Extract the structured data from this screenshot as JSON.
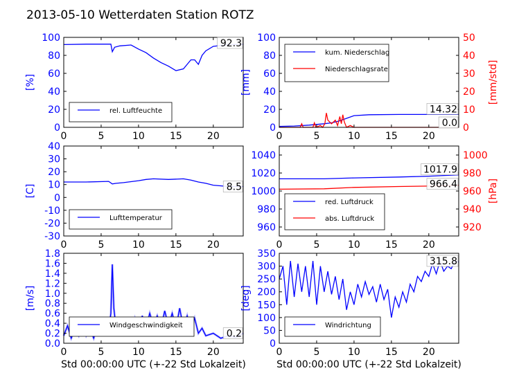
{
  "figure": {
    "title": "2013-05-10 Wetterdaten Station ROTZ"
  },
  "colors": {
    "primary": "#0000ff",
    "secondary": "#ff0000",
    "wind_light": "#8080ff",
    "text": "#000000"
  },
  "chart_data": [
    {
      "id": "humidity",
      "type": "line",
      "ylabel": "[%]",
      "ylim": [
        0,
        100
      ],
      "yticks": [
        0,
        20,
        40,
        60,
        80,
        100
      ],
      "xlim": [
        0,
        24
      ],
      "xticks": [
        0,
        5,
        10,
        15,
        20
      ],
      "legend": "lower-left",
      "last_value_label": "92.3",
      "series": [
        {
          "name": "rel. Luftfeuchte",
          "color": "#0000ff",
          "points": [
            [
              0,
              92
            ],
            [
              3,
              92.5
            ],
            [
              6.3,
              92.5
            ],
            [
              6.5,
              84
            ],
            [
              6.8,
              89
            ],
            [
              7.5,
              90.5
            ],
            [
              9,
              91.5
            ],
            [
              10,
              87
            ],
            [
              11,
              83
            ],
            [
              12,
              77
            ],
            [
              13,
              72
            ],
            [
              14,
              68
            ],
            [
              15,
              63
            ],
            [
              16,
              65
            ],
            [
              16.5,
              70
            ],
            [
              17,
              75
            ],
            [
              17.5,
              75
            ],
            [
              18,
              70
            ],
            [
              18.5,
              80
            ],
            [
              19,
              85
            ],
            [
              20,
              90
            ],
            [
              22,
              92
            ],
            [
              24,
              92.3
            ]
          ]
        }
      ]
    },
    {
      "id": "precip",
      "type": "line",
      "ylabel": "[mm]",
      "ylim": [
        0,
        100
      ],
      "yticks": [
        0,
        20,
        40,
        60,
        80,
        100
      ],
      "ylabel2": "[mm/std]",
      "ylim2": [
        0,
        50
      ],
      "yticks2": [
        0,
        10,
        20,
        30,
        40,
        50
      ],
      "xlim": [
        0,
        24
      ],
      "xticks": [
        0,
        5,
        10,
        15,
        20
      ],
      "legend": "top-left",
      "last_value_labels": [
        "14.32",
        "0.0"
      ],
      "series": [
        {
          "name": "kum. Niederschlag",
          "axis": "left",
          "color": "#0000ff",
          "points": [
            [
              0,
              1
            ],
            [
              2,
              1.5
            ],
            [
              4,
              2.5
            ],
            [
              6,
              4
            ],
            [
              7,
              5
            ],
            [
              8,
              7
            ],
            [
              9,
              10
            ],
            [
              10,
              13
            ],
            [
              12,
              14
            ],
            [
              16,
              14.3
            ],
            [
              24,
              14.32
            ]
          ]
        },
        {
          "name": "Niederschlagsrate",
          "axis": "right",
          "color": "#ff0000",
          "points": [
            [
              0,
              0
            ],
            [
              2.8,
              0
            ],
            [
              3,
              2
            ],
            [
              3.2,
              0
            ],
            [
              4.5,
              0
            ],
            [
              4.7,
              2.5
            ],
            [
              4.9,
              0
            ],
            [
              5.5,
              1
            ],
            [
              5.8,
              0
            ],
            [
              6.1,
              2
            ],
            [
              6.3,
              8
            ],
            [
              6.5,
              4
            ],
            [
              7,
              2
            ],
            [
              7.5,
              4
            ],
            [
              7.8,
              1
            ],
            [
              8.1,
              6
            ],
            [
              8.3,
              2
            ],
            [
              8.5,
              7
            ],
            [
              8.7,
              3
            ],
            [
              9,
              0
            ],
            [
              9.5,
              1
            ],
            [
              10,
              0
            ],
            [
              24,
              0
            ]
          ]
        }
      ]
    },
    {
      "id": "temperature",
      "type": "line",
      "ylabel": "[C]",
      "ylim": [
        -30,
        40
      ],
      "yticks": [
        -30,
        -20,
        -10,
        0,
        10,
        20,
        30,
        40
      ],
      "xlim": [
        0,
        24
      ],
      "xticks": [
        0,
        5,
        10,
        15,
        20
      ],
      "legend": "lower-left",
      "last_value_label": "8.5",
      "series": [
        {
          "name": "Lufttemperatur",
          "color": "#0000ff",
          "points": [
            [
              0,
              12
            ],
            [
              3,
              12
            ],
            [
              6,
              12.5
            ],
            [
              6.5,
              10.5
            ],
            [
              7,
              11
            ],
            [
              8,
              11.5
            ],
            [
              10,
              13
            ],
            [
              11,
              14
            ],
            [
              12,
              14.5
            ],
            [
              14,
              14
            ],
            [
              16,
              14.5
            ],
            [
              17,
              13.5
            ],
            [
              18,
              12
            ],
            [
              19,
              11
            ],
            [
              20,
              9.5
            ],
            [
              22,
              8.5
            ],
            [
              24,
              8.5
            ]
          ]
        }
      ]
    },
    {
      "id": "pressure",
      "type": "line",
      "ylabel": "",
      "ylim": [
        950,
        1050
      ],
      "yticks": [
        960,
        980,
        1000,
        1020,
        1040
      ],
      "ylabel2": "[hPa]",
      "ylim2": [
        910,
        1010
      ],
      "yticks2": [
        920,
        940,
        960,
        980,
        1000
      ],
      "xlim": [
        0,
        24
      ],
      "xticks": [
        0,
        5,
        10,
        15,
        20
      ],
      "legend": "lower-left",
      "last_value_labels": [
        "1017.9",
        "966.4"
      ],
      "series": [
        {
          "name": "red. Luftdruck",
          "axis": "left",
          "color": "#0000ff",
          "points": [
            [
              0,
              1013.5
            ],
            [
              6,
              1013.5
            ],
            [
              10,
              1014.5
            ],
            [
              16,
              1015.5
            ],
            [
              20,
              1016.5
            ],
            [
              24,
              1017.9
            ]
          ]
        },
        {
          "name": "abs. Luftdruck",
          "axis": "right",
          "color": "#ff0000",
          "points": [
            [
              0,
              962
            ],
            [
              6,
              962.5
            ],
            [
              10,
              964
            ],
            [
              16,
              965
            ],
            [
              20,
              965.5
            ],
            [
              24,
              966.4
            ]
          ]
        }
      ]
    },
    {
      "id": "wind",
      "type": "line",
      "ylabel": "[m/s]",
      "ylim": [
        0,
        1.8
      ],
      "yticks": [
        0.0,
        0.2,
        0.4,
        0.6,
        0.8,
        1.0,
        1.2,
        1.4,
        1.6,
        1.8
      ],
      "xlim": [
        0,
        24
      ],
      "xticks": [
        0,
        5,
        10,
        15,
        20
      ],
      "xlabel": "Std 00:00:00 UTC (+-22 Std Lokalzeit)",
      "legend": "lower-left",
      "last_value_label": "0.2",
      "series": [
        {
          "name": "Windgeschwindigkeit",
          "color": "#0000ff",
          "points": [
            [
              0,
              0.15
            ],
            [
              0.5,
              0.35
            ],
            [
              1,
              0.1
            ],
            [
              1.5,
              0.3
            ],
            [
              2,
              0.15
            ],
            [
              2.5,
              0.4
            ],
            [
              3,
              0.15
            ],
            [
              3.5,
              0.3
            ],
            [
              4,
              0.1
            ],
            [
              4.5,
              0.35
            ],
            [
              5,
              0.2
            ],
            [
              5.5,
              0.3
            ],
            [
              6,
              0.25
            ],
            [
              6.3,
              0.6
            ],
            [
              6.5,
              1.58
            ],
            [
              6.7,
              0.7
            ],
            [
              7,
              0.3
            ],
            [
              7.5,
              0.4
            ],
            [
              8,
              0.2
            ],
            [
              8.5,
              0.45
            ],
            [
              9,
              0.25
            ],
            [
              9.5,
              0.5
            ],
            [
              10,
              0.2
            ],
            [
              10.5,
              0.55
            ],
            [
              11,
              0.3
            ],
            [
              11.5,
              0.6
            ],
            [
              12,
              0.35
            ],
            [
              12.5,
              0.55
            ],
            [
              13,
              0.3
            ],
            [
              13.5,
              0.65
            ],
            [
              14,
              0.35
            ],
            [
              14.5,
              0.6
            ],
            [
              15,
              0.3
            ],
            [
              15.5,
              0.7
            ],
            [
              16,
              0.3
            ],
            [
              16.5,
              0.55
            ],
            [
              17,
              0.25
            ],
            [
              17.5,
              0.5
            ],
            [
              18,
              0.2
            ],
            [
              18.5,
              0.3
            ],
            [
              19,
              0.15
            ],
            [
              20,
              0.2
            ],
            [
              21,
              0.1
            ],
            [
              22,
              0.15
            ],
            [
              23,
              0.12
            ],
            [
              24,
              0.2
            ]
          ]
        }
      ]
    },
    {
      "id": "winddir",
      "type": "line",
      "ylabel": "[deg]",
      "ylim": [
        0,
        350
      ],
      "yticks": [
        0,
        50,
        100,
        150,
        200,
        250,
        300,
        350
      ],
      "xlim": [
        0,
        24
      ],
      "xticks": [
        0,
        5,
        10,
        15,
        20
      ],
      "xlabel": "Std 00:00:00 UTC (+-22 Std Lokalzeit)",
      "legend": "lower-left",
      "last_value_label": "315.8",
      "series": [
        {
          "name": "Windrichtung",
          "color": "#0000ff",
          "points": [
            [
              0,
              250
            ],
            [
              0.5,
              300
            ],
            [
              1,
              150
            ],
            [
              1.5,
              320
            ],
            [
              2,
              180
            ],
            [
              2.5,
              310
            ],
            [
              3,
              200
            ],
            [
              3.5,
              300
            ],
            [
              4,
              180
            ],
            [
              4.5,
              320
            ],
            [
              5,
              150
            ],
            [
              5.5,
              300
            ],
            [
              6,
              200
            ],
            [
              6.5,
              280
            ],
            [
              7,
              190
            ],
            [
              7.5,
              260
            ],
            [
              8,
              170
            ],
            [
              8.5,
              250
            ],
            [
              9,
              130
            ],
            [
              9.5,
              200
            ],
            [
              10,
              150
            ],
            [
              10.5,
              230
            ],
            [
              11,
              180
            ],
            [
              11.5,
              240
            ],
            [
              12,
              190
            ],
            [
              12.5,
              220
            ],
            [
              13,
              160
            ],
            [
              13.5,
              230
            ],
            [
              14,
              170
            ],
            [
              14.5,
              210
            ],
            [
              15,
              100
            ],
            [
              15.5,
              180
            ],
            [
              16,
              140
            ],
            [
              16.5,
              200
            ],
            [
              17,
              160
            ],
            [
              17.5,
              230
            ],
            [
              18,
              200
            ],
            [
              18.5,
              260
            ],
            [
              19,
              240
            ],
            [
              19.5,
              280
            ],
            [
              20,
              260
            ],
            [
              20.5,
              310
            ],
            [
              21,
              270
            ],
            [
              21.5,
              320
            ],
            [
              22,
              280
            ],
            [
              22.5,
              300
            ],
            [
              23,
              290
            ],
            [
              23.5,
              320
            ],
            [
              24,
              315.8
            ]
          ]
        }
      ]
    }
  ]
}
